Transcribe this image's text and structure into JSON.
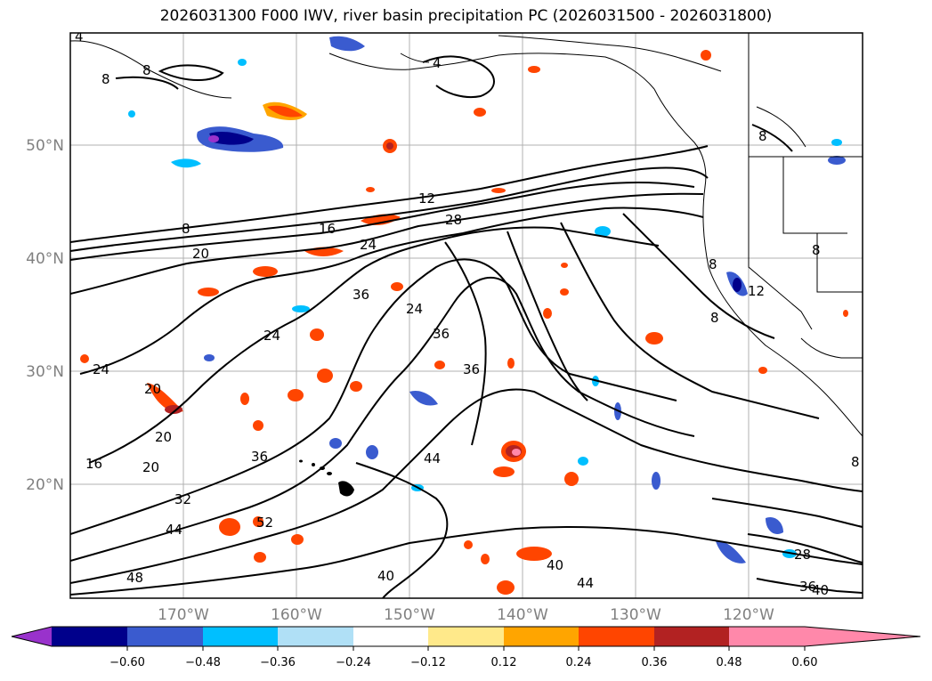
{
  "title": "2026031300 F000 IWV, river basin precipitation PC (2026031500 - 2026031800)",
  "map": {
    "lat_labels": [
      "50°N",
      "40°N",
      "30°N",
      "20°N"
    ],
    "lon_labels": [
      "170°W",
      "160°W",
      "150°W",
      "140°W",
      "130°W",
      "120°W"
    ],
    "grid": true
  },
  "contour_labels": [
    "4",
    "8",
    "8",
    "4",
    "8",
    "12",
    "16",
    "20",
    "24",
    "28",
    "36",
    "36",
    "36",
    "24",
    "24",
    "20",
    "20",
    "16",
    "20",
    "36",
    "32",
    "44",
    "44",
    "52",
    "48",
    "40",
    "44",
    "28",
    "36",
    "40",
    "8",
    "12",
    "8",
    "8",
    "8",
    "8",
    "24",
    "40"
  ],
  "colorbar": {
    "colors": [
      "#9932cc",
      "#00008b",
      "#3a5bcf",
      "#00bfff",
      "#b0e0f6",
      "#ffffff",
      "#ffe98a",
      "#ffa500",
      "#ff4500",
      "#b22222",
      "#ff88aa"
    ],
    "ticks": [
      "−0.60",
      "−0.48",
      "−0.36",
      "−0.24",
      "−0.12",
      "0.12",
      "0.24",
      "0.36",
      "0.48",
      "0.60"
    ],
    "extend": "both"
  },
  "chart_data": {
    "type": "heatmap",
    "title": "2026031300 F000 IWV, river basin precipitation PC (2026031500 - 2026031800)",
    "contour_field": "IWV",
    "contour_levels": [
      4,
      8,
      12,
      16,
      20,
      24,
      28,
      32,
      36,
      40,
      44,
      48,
      52
    ],
    "fill_levels": [
      -0.6,
      -0.48,
      -0.36,
      -0.24,
      -0.12,
      0.12,
      0.24,
      0.36,
      0.48,
      0.6
    ],
    "lon_range_deg": [
      -180,
      -110
    ],
    "lat_range_deg": [
      10,
      60
    ]
  }
}
